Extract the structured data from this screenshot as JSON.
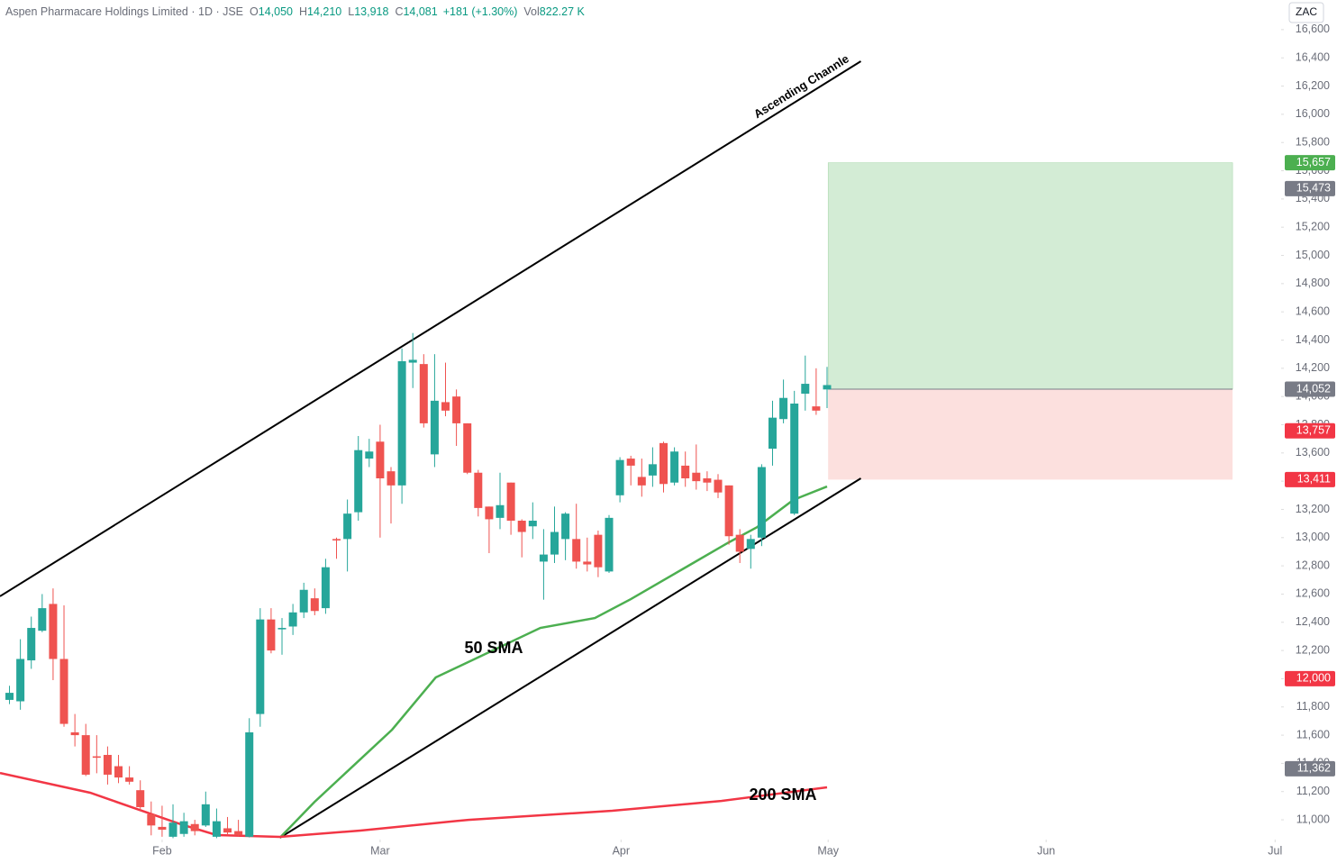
{
  "chart_data": {
    "type": "candlestick",
    "header": {
      "symbol": "Aspen Pharmacare Holdings Limited · 1D · JSE",
      "fields": [
        {
          "label": "O",
          "value": "14,050"
        },
        {
          "label": "H",
          "value": "14,210"
        },
        {
          "label": "L",
          "value": "13,918"
        },
        {
          "label": "C",
          "value": "14,081"
        }
      ],
      "change": "+181 (+1.30%)",
      "volume": {
        "label": "Vol",
        "value": "822.27 K"
      }
    },
    "currency": "ZAC",
    "categories": [
      null,
      null,
      null,
      null,
      null,
      null,
      null,
      null,
      null,
      null,
      null,
      null,
      null,
      null,
      null,
      null,
      null,
      null,
      null,
      null,
      null,
      null,
      null,
      null,
      null,
      null,
      null,
      null,
      null,
      null,
      null,
      null,
      null,
      null,
      null,
      null,
      null,
      null,
      null,
      null,
      null,
      null,
      null,
      null,
      null,
      null,
      null,
      null,
      null,
      null,
      null,
      null,
      null,
      null,
      null,
      null,
      null,
      null,
      null,
      null,
      null,
      null,
      null,
      null,
      null,
      null,
      null,
      null,
      null,
      null,
      null,
      null,
      null,
      null,
      null,
      null
    ],
    "open": [
      11850,
      11840,
      12130,
      12340,
      12530,
      12140,
      11620,
      11600,
      11450,
      11460,
      11380,
      11300,
      11210,
      11040,
      10950,
      10880,
      10900,
      10970,
      10960,
      10880,
      10940,
      10920,
      10880,
      11750,
      12420,
      12350,
      12370,
      12470,
      12570,
      12500,
      12990,
      12990,
      13180,
      13560,
      13680,
      13470,
      13370,
      14240,
      14230,
      13590,
      13960,
      14000,
      13810,
      13460,
      13220,
      13140,
      13390,
      13120,
      13080,
      12830,
      12880,
      12990,
      12990,
      12830,
      13020,
      12760,
      13300,
      13560,
      13430,
      13440,
      13670,
      13390,
      13510,
      13460,
      13420,
      13410,
      13370,
      13020,
      12920,
      13000,
      13630,
      13840,
      13170,
      14020,
      13930,
      14050
    ],
    "high": [
      11950,
      12280,
      12440,
      12600,
      12640,
      12520,
      11750,
      11680,
      11600,
      11520,
      11460,
      11380,
      11280,
      11130,
      11100,
      11110,
      11050,
      11000,
      11200,
      11080,
      11020,
      11000,
      11720,
      12500,
      12500,
      12430,
      12530,
      12680,
      12640,
      12850,
      13000,
      13270,
      13720,
      13700,
      13800,
      13500,
      14340,
      14450,
      14300,
      14300,
      14240,
      14050,
      13810,
      13480,
      13220,
      13460,
      13390,
      13130,
      13250,
      13060,
      13220,
      13180,
      13240,
      13000,
      13050,
      13160,
      13570,
      13580,
      13560,
      13640,
      13680,
      13640,
      13610,
      13660,
      13470,
      13450,
      13370,
      13060,
      13020,
      13520,
      13970,
      14120,
      14040,
      14290,
      14200,
      14210
    ],
    "low": [
      11820,
      11780,
      12070,
      12330,
      11990,
      11660,
      11520,
      11310,
      11330,
      11250,
      11260,
      11250,
      11060,
      10890,
      10880,
      10870,
      10880,
      10890,
      10950,
      10870,
      10890,
      10880,
      10875,
      11660,
      12180,
      12170,
      12310,
      12430,
      12450,
      12460,
      12850,
      12760,
      13120,
      13500,
      13000,
      13100,
      13240,
      14060,
      13780,
      13500,
      13860,
      13650,
      13450,
      13150,
      12890,
      13060,
      13020,
      12860,
      12990,
      12560,
      12820,
      12840,
      12780,
      12760,
      12720,
      12750,
      13250,
      13370,
      13290,
      13360,
      13320,
      13370,
      13360,
      13340,
      13330,
      13280,
      12950,
      12820,
      12780,
      12940,
      13510,
      13810,
      13160,
      13900,
      13870,
      13918
    ],
    "close": [
      11900,
      12140,
      12360,
      12500,
      12140,
      11680,
      11600,
      11320,
      11440,
      11320,
      11300,
      11270,
      11090,
      10960,
      10930,
      10980,
      10990,
      10920,
      11110,
      10990,
      10910,
      10890,
      11620,
      12420,
      12200,
      12360,
      12470,
      12630,
      12480,
      12790,
      12980,
      13170,
      13620,
      13610,
      13420,
      13370,
      14250,
      14260,
      13810,
      13970,
      13900,
      13810,
      13460,
      13210,
      13130,
      13230,
      13120,
      13040,
      13120,
      12880,
      13040,
      13170,
      12830,
      12810,
      12790,
      13140,
      13550,
      13510,
      13370,
      13520,
      13380,
      13610,
      13420,
      13400,
      13390,
      13320,
      13010,
      12900,
      12990,
      13500,
      13850,
      13990,
      13950,
      14090,
      13900,
      14081
    ],
    "up_color": "#26a69a",
    "down_color": "#ef5350",
    "xlim": [
      -0.87,
      116.49
    ],
    "xticks": [
      {
        "value": 14,
        "label": "Feb"
      },
      {
        "value": 34,
        "label": "Mar"
      },
      {
        "value": 56.1,
        "label": "Apr"
      },
      {
        "value": 75.1,
        "label": "May"
      },
      {
        "value": 95.1,
        "label": "Jun"
      },
      {
        "value": 116.1,
        "label": "Jul"
      }
    ],
    "ylim": [
      10860,
      16810
    ],
    "yticks": [
      {
        "value": 11000,
        "label": "11,000"
      },
      {
        "value": 11200,
        "label": "11,200"
      },
      {
        "value": 11400,
        "label": "11,400"
      },
      {
        "value": 11600,
        "label": "11,600"
      },
      {
        "value": 11800,
        "label": "11,800"
      },
      {
        "value": 12000,
        "label": "12,000"
      },
      {
        "value": 12200,
        "label": "12,200"
      },
      {
        "value": 12400,
        "label": "12,400"
      },
      {
        "value": 12600,
        "label": "12,600"
      },
      {
        "value": 12800,
        "label": "12,800"
      },
      {
        "value": 13000,
        "label": "13,000"
      },
      {
        "value": 13200,
        "label": "13,200"
      },
      {
        "value": 13400,
        "label": "13,400"
      },
      {
        "value": 13600,
        "label": "13,600"
      },
      {
        "value": 13800,
        "label": "13,800"
      },
      {
        "value": 14000,
        "label": "14,000"
      },
      {
        "value": 14200,
        "label": "14,200"
      },
      {
        "value": 14400,
        "label": "14,400"
      },
      {
        "value": 14600,
        "label": "14,600"
      },
      {
        "value": 14800,
        "label": "14,800"
      },
      {
        "value": 15000,
        "label": "15,000"
      },
      {
        "value": 15200,
        "label": "15,200"
      },
      {
        "value": 15400,
        "label": "15,400"
      },
      {
        "value": 15600,
        "label": "15,600"
      },
      {
        "value": 15800,
        "label": "15,800"
      },
      {
        "value": 16000,
        "label": "16,000"
      },
      {
        "value": 16200,
        "label": "16,200"
      },
      {
        "value": 16400,
        "label": "16,400"
      },
      {
        "value": 16600,
        "label": "16,600"
      }
    ],
    "overlays": [
      {
        "name": "50 SMA",
        "color": "#4caf50",
        "x": [
          24.8,
          28,
          35.1,
          39.1,
          43.8,
          48.7,
          53.7,
          57,
          62,
          66,
          68.6,
          71.9,
          75
        ],
        "values": [
          10873,
          11128,
          11639,
          12009,
          12181,
          12360,
          12430,
          12564,
          12788,
          12967,
          13075,
          13267,
          13362
        ]
      },
      {
        "name": "200 SMA",
        "color": "#f23645",
        "x": [
          -0.87,
          7.4,
          15.7,
          19,
          24.8,
          32.2,
          42.1,
          55.3,
          65.3,
          75
        ],
        "values": [
          11332,
          11192,
          10969,
          10892,
          10879,
          10924,
          11000,
          11064,
          11134,
          11230
        ]
      }
    ],
    "channel": {
      "label": "Ascending Channle",
      "color": "#000000",
      "upper": {
        "x": [
          -0.87,
          78.1
        ],
        "values": [
          12584,
          16376
        ]
      },
      "lower": {
        "x": [
          24.8,
          78.1
        ],
        "values": [
          10873,
          13420
        ]
      }
    },
    "position": {
      "x": [
        75.1,
        112.2
      ],
      "entry": 14052,
      "target": 15657,
      "stop": 13411,
      "profit_color": "#d3ecd5",
      "loss_color": "#fce0de"
    },
    "price_tags": [
      {
        "value": 15657,
        "label": "15,657",
        "color": "#4caf50"
      },
      {
        "value": 15473,
        "label": "15,473",
        "color": "#787b86"
      },
      {
        "value": 14052,
        "label": "14,052",
        "color": "#787b86"
      },
      {
        "value": 13757,
        "label": "13,757",
        "color": "#f23645"
      },
      {
        "value": 13411,
        "label": "13,411",
        "color": "#f23645"
      },
      {
        "value": 12000,
        "label": "12,000",
        "color": "#f23645"
      },
      {
        "value": 11362,
        "label": "11,362",
        "color": "#787b86"
      }
    ]
  }
}
